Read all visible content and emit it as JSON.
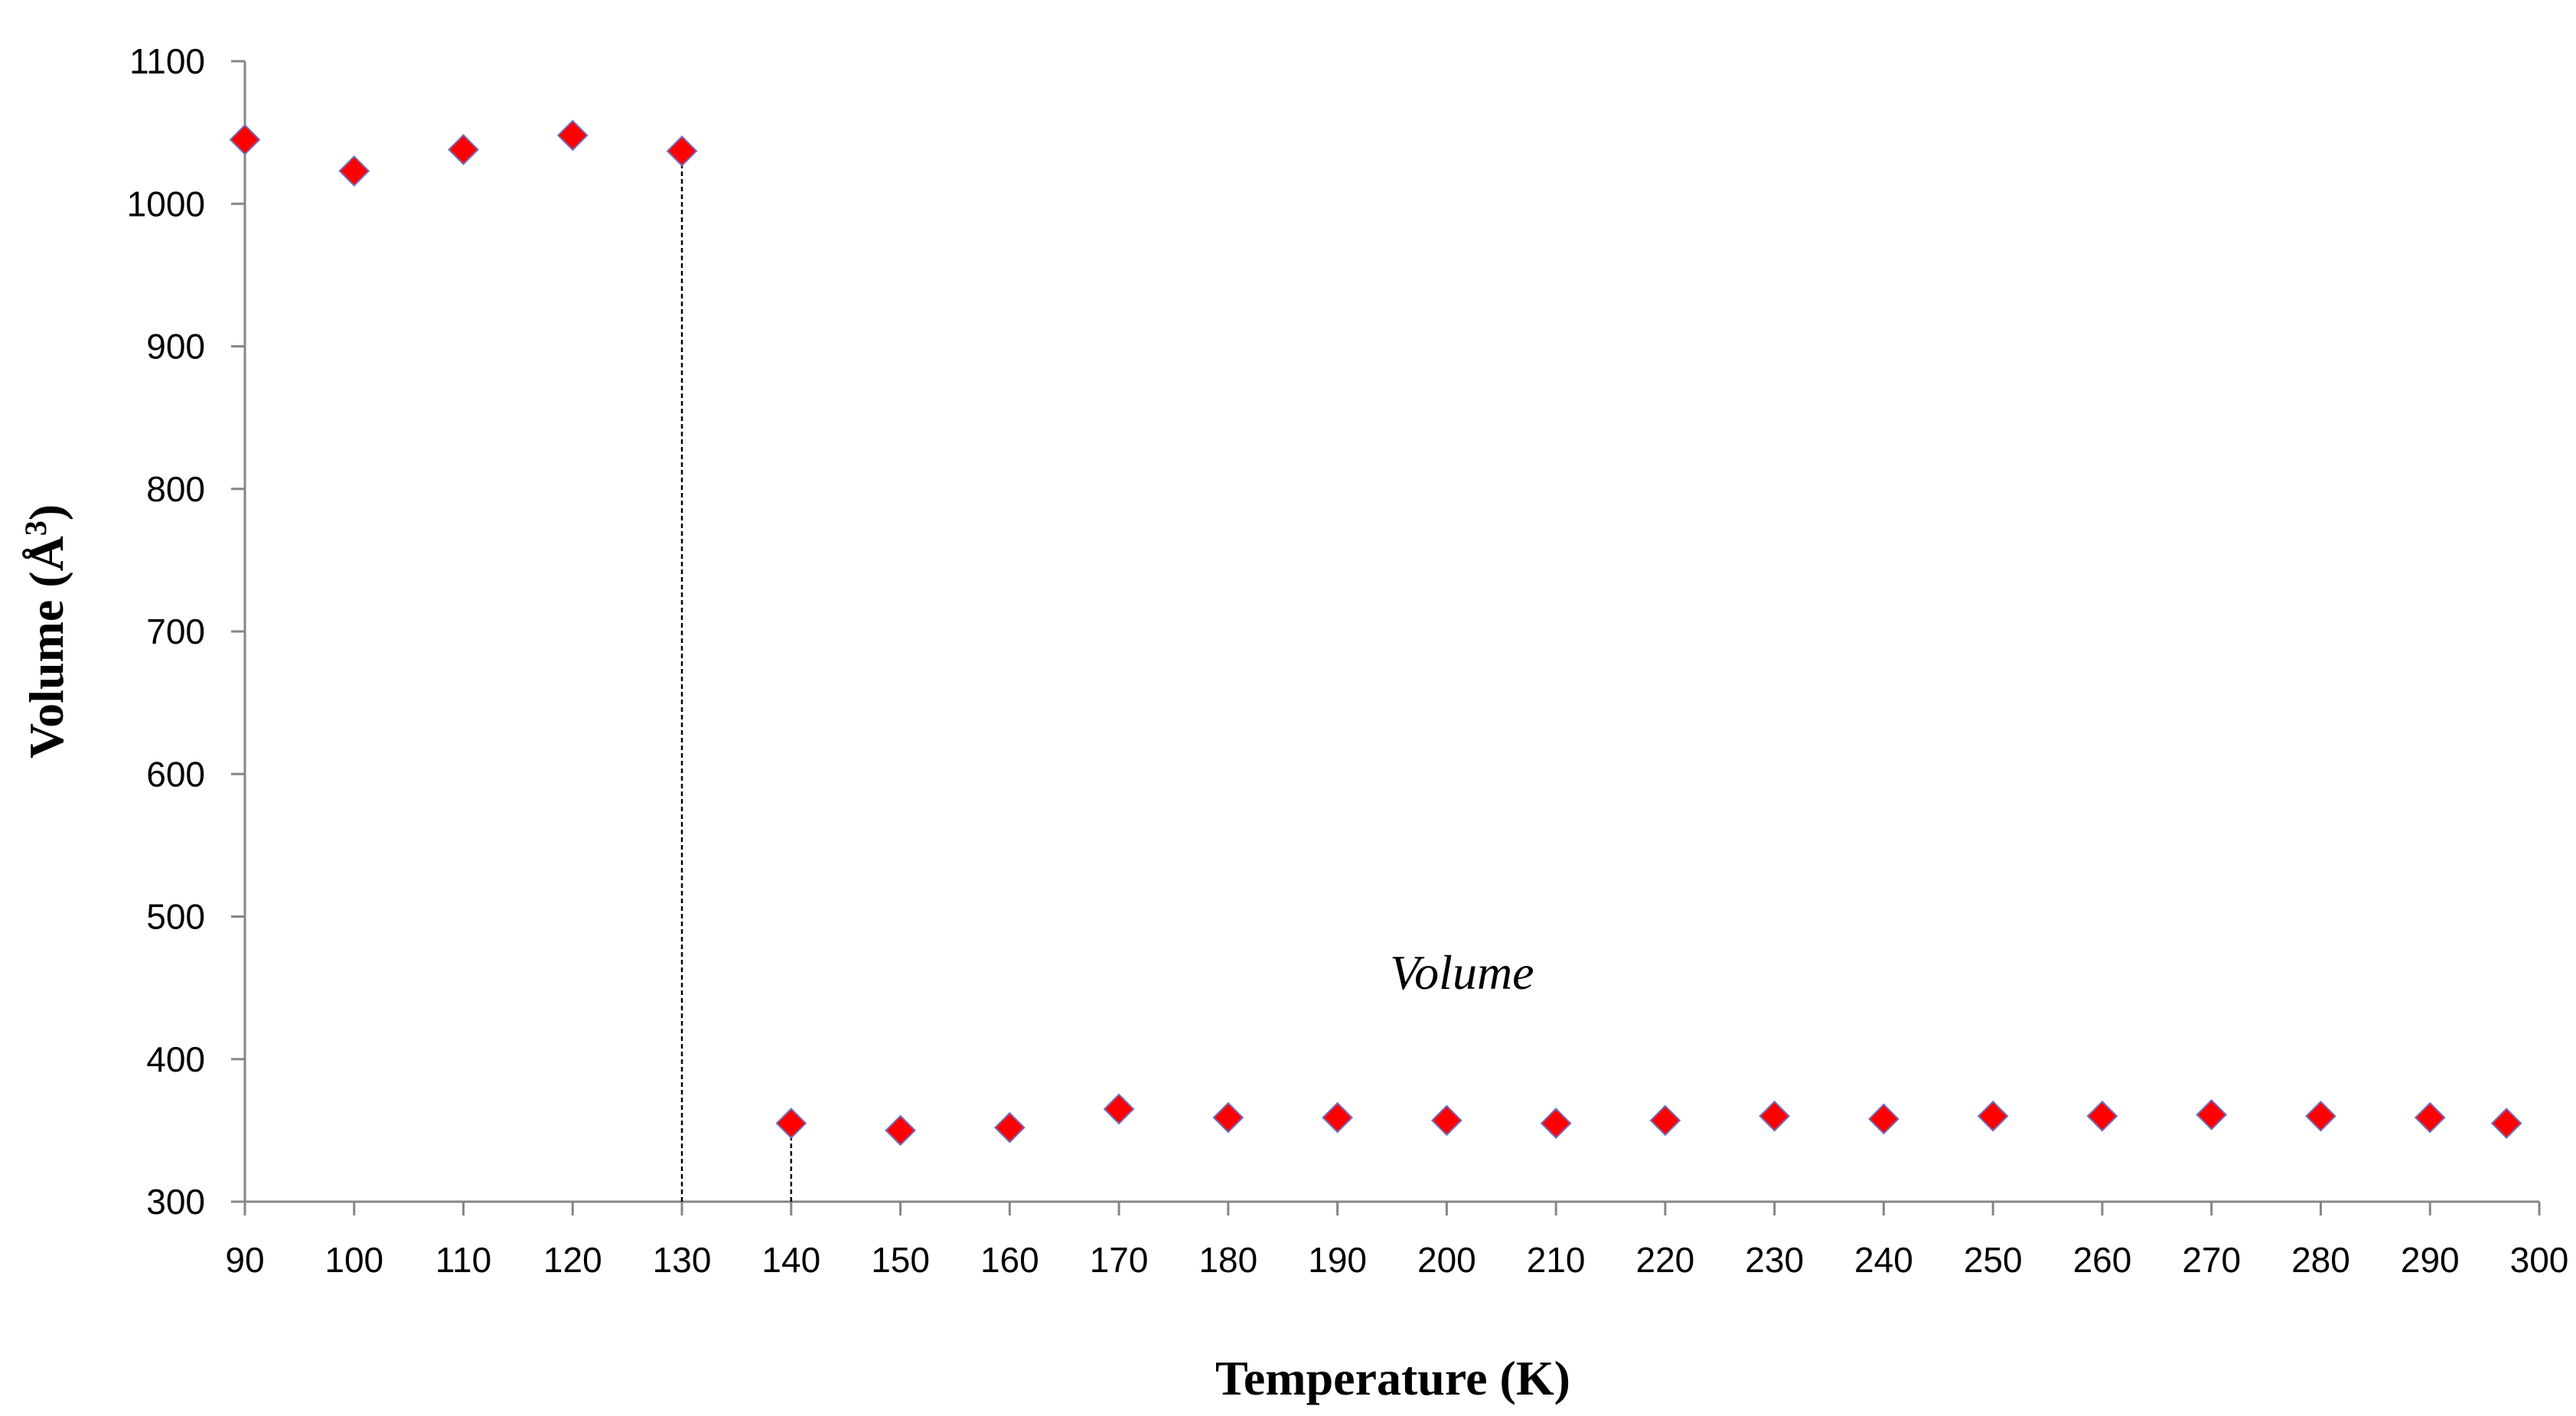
{
  "chart_data": {
    "type": "scatter",
    "title": "",
    "xlabel": "Temperature (K)",
    "ylabel_main": "Volume (Å",
    "ylabel_sup": "3",
    "ylabel_close": ")",
    "xlim": [
      90,
      300
    ],
    "ylim": [
      300,
      1100
    ],
    "xticks": [
      90,
      100,
      110,
      120,
      130,
      140,
      150,
      160,
      170,
      180,
      190,
      200,
      210,
      220,
      230,
      240,
      250,
      260,
      270,
      280,
      290,
      300
    ],
    "yticks": [
      300,
      400,
      500,
      600,
      700,
      800,
      900,
      1000,
      1100
    ],
    "grid": false,
    "marker": "diamond",
    "marker_color": "#ff0000",
    "marker_edge_color": "#7070c0",
    "annotation": "Volume",
    "annotation_position": {
      "x": 200,
      "y": 460
    },
    "dashed_lines": [
      {
        "x": 130,
        "y_from": 300,
        "y_to": 1037
      },
      {
        "x": 140,
        "y_from": 300,
        "y_to": 355
      }
    ],
    "series": [
      {
        "name": "Volume",
        "x": [
          90,
          100,
          110,
          120,
          130,
          140,
          150,
          160,
          170,
          180,
          190,
          200,
          210,
          220,
          230,
          240,
          250,
          260,
          270,
          280,
          290,
          297
        ],
        "y": [
          1045,
          1023,
          1038,
          1048,
          1037,
          355,
          350,
          352,
          365,
          359,
          359,
          357,
          355,
          357,
          360,
          358,
          360,
          360,
          361,
          360,
          359,
          355
        ]
      }
    ]
  }
}
